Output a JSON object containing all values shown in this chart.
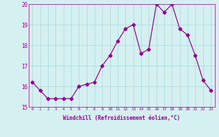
{
  "x": [
    0,
    1,
    2,
    3,
    4,
    5,
    6,
    7,
    8,
    9,
    10,
    11,
    12,
    13,
    14,
    15,
    16,
    17,
    18,
    19,
    20,
    21,
    22,
    23
  ],
  "y": [
    16.2,
    15.8,
    15.4,
    15.4,
    15.4,
    15.4,
    16.0,
    16.1,
    16.2,
    17.0,
    17.5,
    18.2,
    18.8,
    19.0,
    17.6,
    17.8,
    20.0,
    19.6,
    20.0,
    18.8,
    18.5,
    17.5,
    16.3,
    15.8
  ],
  "line_color": "#990099",
  "marker": "D",
  "marker_size": 2.5,
  "bg_color": "#d4f0f0",
  "grid_color": "#aadddd",
  "xlabel": "Windchill (Refroidissement éolien,°C)",
  "xlabel_color": "#990099",
  "tick_color": "#990099",
  "ylim": [
    15,
    20
  ],
  "xlim_min": -0.5,
  "xlim_max": 23.5,
  "yticks": [
    15,
    16,
    17,
    18,
    19,
    20
  ],
  "xticks": [
    0,
    1,
    2,
    3,
    4,
    5,
    6,
    7,
    8,
    9,
    10,
    11,
    12,
    13,
    14,
    15,
    16,
    17,
    18,
    19,
    20,
    21,
    22,
    23
  ],
  "xtick_labels": [
    "0",
    "1",
    "2",
    "3",
    "4",
    "5",
    "6",
    "7",
    "8",
    "9",
    "10",
    "11",
    "12",
    "13",
    "14",
    "15",
    "16",
    "17",
    "18",
    "19",
    "20",
    "21",
    "22",
    "23"
  ]
}
